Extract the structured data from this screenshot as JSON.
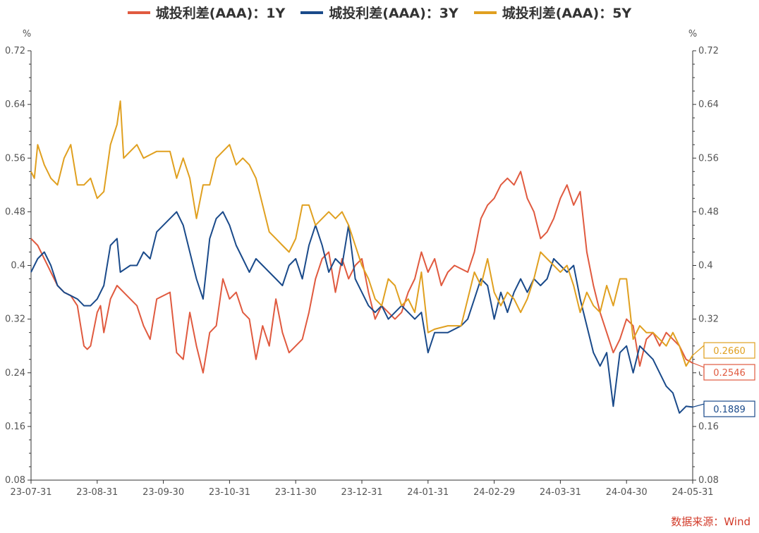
{
  "chart_data": {
    "type": "line",
    "title": "",
    "legend_placement": "top-center",
    "unit_left": "%",
    "unit_right": "%",
    "ylim": [
      0.08,
      0.72
    ],
    "y_ticks": [
      "0.08",
      "0.16",
      "0.24",
      "0.32",
      "0.4",
      "0.48",
      "0.56",
      "0.64",
      "0.72"
    ],
    "x_ticks": [
      "23-07-31",
      "23-08-31",
      "23-09-30",
      "23-10-31",
      "23-11-30",
      "23-12-31",
      "24-01-31",
      "24-02-29",
      "24-03-31",
      "24-04-30",
      "24-05-31"
    ],
    "x_tick_values": [
      0,
      1,
      2,
      3,
      4,
      5,
      6,
      7,
      8,
      9,
      10
    ],
    "grid": false,
    "source": "数据来源：Wind",
    "series": [
      {
        "name": "城投利差(AAA)：1Y",
        "color": "#e05a3f",
        "end_label": "0.2546",
        "points": [
          [
            0,
            0.44
          ],
          [
            0.1,
            0.43
          ],
          [
            0.2,
            0.41
          ],
          [
            0.3,
            0.39
          ],
          [
            0.4,
            0.37
          ],
          [
            0.5,
            0.36
          ],
          [
            0.6,
            0.355
          ],
          [
            0.7,
            0.34
          ],
          [
            0.75,
            0.31
          ],
          [
            0.8,
            0.28
          ],
          [
            0.85,
            0.275
          ],
          [
            0.9,
            0.28
          ],
          [
            1.0,
            0.33
          ],
          [
            1.05,
            0.34
          ],
          [
            1.1,
            0.3
          ],
          [
            1.2,
            0.35
          ],
          [
            1.3,
            0.37
          ],
          [
            1.4,
            0.36
          ],
          [
            1.5,
            0.35
          ],
          [
            1.6,
            0.34
          ],
          [
            1.7,
            0.31
          ],
          [
            1.8,
            0.29
          ],
          [
            1.9,
            0.35
          ],
          [
            2.1,
            0.36
          ],
          [
            2.2,
            0.27
          ],
          [
            2.3,
            0.26
          ],
          [
            2.4,
            0.33
          ],
          [
            2.5,
            0.28
          ],
          [
            2.6,
            0.24
          ],
          [
            2.7,
            0.3
          ],
          [
            2.8,
            0.31
          ],
          [
            2.9,
            0.38
          ],
          [
            3.0,
            0.35
          ],
          [
            3.1,
            0.36
          ],
          [
            3.2,
            0.33
          ],
          [
            3.3,
            0.32
          ],
          [
            3.4,
            0.26
          ],
          [
            3.5,
            0.31
          ],
          [
            3.6,
            0.28
          ],
          [
            3.7,
            0.35
          ],
          [
            3.8,
            0.3
          ],
          [
            3.9,
            0.27
          ],
          [
            4.0,
            0.28
          ],
          [
            4.1,
            0.29
          ],
          [
            4.2,
            0.33
          ],
          [
            4.3,
            0.38
          ],
          [
            4.4,
            0.41
          ],
          [
            4.5,
            0.42
          ],
          [
            4.6,
            0.36
          ],
          [
            4.7,
            0.41
          ],
          [
            4.8,
            0.38
          ],
          [
            4.9,
            0.4
          ],
          [
            5.0,
            0.41
          ],
          [
            5.1,
            0.36
          ],
          [
            5.2,
            0.32
          ],
          [
            5.3,
            0.34
          ],
          [
            5.4,
            0.33
          ],
          [
            5.5,
            0.32
          ],
          [
            5.6,
            0.33
          ],
          [
            5.7,
            0.36
          ],
          [
            5.8,
            0.38
          ],
          [
            5.9,
            0.42
          ],
          [
            6.0,
            0.39
          ],
          [
            6.1,
            0.41
          ],
          [
            6.2,
            0.37
          ],
          [
            6.3,
            0.39
          ],
          [
            6.4,
            0.4
          ],
          [
            6.6,
            0.39
          ],
          [
            6.7,
            0.42
          ],
          [
            6.8,
            0.47
          ],
          [
            6.9,
            0.49
          ],
          [
            7.0,
            0.5
          ],
          [
            7.1,
            0.52
          ],
          [
            7.2,
            0.53
          ],
          [
            7.3,
            0.52
          ],
          [
            7.4,
            0.54
          ],
          [
            7.5,
            0.5
          ],
          [
            7.6,
            0.48
          ],
          [
            7.7,
            0.44
          ],
          [
            7.8,
            0.45
          ],
          [
            7.9,
            0.47
          ],
          [
            8.0,
            0.5
          ],
          [
            8.1,
            0.52
          ],
          [
            8.2,
            0.49
          ],
          [
            8.3,
            0.51
          ],
          [
            8.4,
            0.42
          ],
          [
            8.5,
            0.37
          ],
          [
            8.6,
            0.33
          ],
          [
            8.7,
            0.3
          ],
          [
            8.8,
            0.27
          ],
          [
            8.9,
            0.29
          ],
          [
            9.0,
            0.32
          ],
          [
            9.1,
            0.31
          ],
          [
            9.2,
            0.25
          ],
          [
            9.3,
            0.29
          ],
          [
            9.4,
            0.3
          ],
          [
            9.5,
            0.28
          ],
          [
            9.6,
            0.3
          ],
          [
            9.7,
            0.29
          ],
          [
            9.8,
            0.28
          ],
          [
            9.9,
            0.26
          ],
          [
            10.0,
            0.2546
          ]
        ]
      },
      {
        "name": "城投利差(AAA)：3Y",
        "color": "#1a4a8a",
        "end_label": "0.1889",
        "points": [
          [
            0,
            0.39
          ],
          [
            0.1,
            0.41
          ],
          [
            0.2,
            0.42
          ],
          [
            0.3,
            0.4
          ],
          [
            0.4,
            0.37
          ],
          [
            0.5,
            0.36
          ],
          [
            0.6,
            0.355
          ],
          [
            0.7,
            0.35
          ],
          [
            0.8,
            0.34
          ],
          [
            0.9,
            0.34
          ],
          [
            1.0,
            0.35
          ],
          [
            1.1,
            0.37
          ],
          [
            1.2,
            0.43
          ],
          [
            1.3,
            0.44
          ],
          [
            1.35,
            0.39
          ],
          [
            1.5,
            0.4
          ],
          [
            1.6,
            0.4
          ],
          [
            1.7,
            0.42
          ],
          [
            1.8,
            0.41
          ],
          [
            1.9,
            0.45
          ],
          [
            2.0,
            0.46
          ],
          [
            2.1,
            0.47
          ],
          [
            2.2,
            0.48
          ],
          [
            2.3,
            0.46
          ],
          [
            2.4,
            0.42
          ],
          [
            2.5,
            0.38
          ],
          [
            2.6,
            0.35
          ],
          [
            2.7,
            0.44
          ],
          [
            2.8,
            0.47
          ],
          [
            2.9,
            0.48
          ],
          [
            3.0,
            0.46
          ],
          [
            3.1,
            0.43
          ],
          [
            3.2,
            0.41
          ],
          [
            3.3,
            0.39
          ],
          [
            3.4,
            0.41
          ],
          [
            3.5,
            0.4
          ],
          [
            3.6,
            0.39
          ],
          [
            3.7,
            0.38
          ],
          [
            3.8,
            0.37
          ],
          [
            3.9,
            0.4
          ],
          [
            4.0,
            0.41
          ],
          [
            4.1,
            0.38
          ],
          [
            4.2,
            0.43
          ],
          [
            4.3,
            0.46
          ],
          [
            4.4,
            0.43
          ],
          [
            4.5,
            0.39
          ],
          [
            4.6,
            0.41
          ],
          [
            4.7,
            0.4
          ],
          [
            4.8,
            0.46
          ],
          [
            4.9,
            0.38
          ],
          [
            5.0,
            0.36
          ],
          [
            5.1,
            0.34
          ],
          [
            5.2,
            0.33
          ],
          [
            5.3,
            0.34
          ],
          [
            5.4,
            0.32
          ],
          [
            5.5,
            0.33
          ],
          [
            5.6,
            0.34
          ],
          [
            5.7,
            0.33
          ],
          [
            5.8,
            0.32
          ],
          [
            5.9,
            0.33
          ],
          [
            6.0,
            0.27
          ],
          [
            6.1,
            0.3
          ],
          [
            6.3,
            0.3
          ],
          [
            6.5,
            0.31
          ],
          [
            6.6,
            0.32
          ],
          [
            6.7,
            0.35
          ],
          [
            6.8,
            0.38
          ],
          [
            6.9,
            0.37
          ],
          [
            7.0,
            0.32
          ],
          [
            7.1,
            0.36
          ],
          [
            7.2,
            0.33
          ],
          [
            7.3,
            0.36
          ],
          [
            7.4,
            0.38
          ],
          [
            7.5,
            0.36
          ],
          [
            7.6,
            0.38
          ],
          [
            7.7,
            0.37
          ],
          [
            7.8,
            0.38
          ],
          [
            7.9,
            0.41
          ],
          [
            8.0,
            0.4
          ],
          [
            8.1,
            0.39
          ],
          [
            8.2,
            0.4
          ],
          [
            8.3,
            0.35
          ],
          [
            8.4,
            0.31
          ],
          [
            8.5,
            0.27
          ],
          [
            8.6,
            0.25
          ],
          [
            8.7,
            0.27
          ],
          [
            8.8,
            0.19
          ],
          [
            8.9,
            0.27
          ],
          [
            9.0,
            0.28
          ],
          [
            9.1,
            0.24
          ],
          [
            9.2,
            0.28
          ],
          [
            9.3,
            0.27
          ],
          [
            9.4,
            0.26
          ],
          [
            9.5,
            0.24
          ],
          [
            9.6,
            0.22
          ],
          [
            9.7,
            0.21
          ],
          [
            9.8,
            0.18
          ],
          [
            9.9,
            0.19
          ],
          [
            10.0,
            0.1889
          ]
        ]
      },
      {
        "name": "城投利差(AAA)：5Y",
        "color": "#e0a020",
        "end_label": "0.2660",
        "points": [
          [
            0,
            0.54
          ],
          [
            0.05,
            0.53
          ],
          [
            0.1,
            0.58
          ],
          [
            0.2,
            0.55
          ],
          [
            0.3,
            0.53
          ],
          [
            0.4,
            0.52
          ],
          [
            0.5,
            0.56
          ],
          [
            0.6,
            0.58
          ],
          [
            0.65,
            0.55
          ],
          [
            0.7,
            0.52
          ],
          [
            0.8,
            0.52
          ],
          [
            0.9,
            0.53
          ],
          [
            1.0,
            0.5
          ],
          [
            1.1,
            0.51
          ],
          [
            1.2,
            0.58
          ],
          [
            1.3,
            0.61
          ],
          [
            1.35,
            0.645
          ],
          [
            1.4,
            0.56
          ],
          [
            1.5,
            0.57
          ],
          [
            1.6,
            0.58
          ],
          [
            1.7,
            0.56
          ],
          [
            1.8,
            0.565
          ],
          [
            1.9,
            0.57
          ],
          [
            2.0,
            0.57
          ],
          [
            2.1,
            0.57
          ],
          [
            2.2,
            0.53
          ],
          [
            2.3,
            0.56
          ],
          [
            2.4,
            0.53
          ],
          [
            2.5,
            0.47
          ],
          [
            2.6,
            0.52
          ],
          [
            2.7,
            0.52
          ],
          [
            2.8,
            0.56
          ],
          [
            2.9,
            0.57
          ],
          [
            3.0,
            0.58
          ],
          [
            3.1,
            0.55
          ],
          [
            3.2,
            0.56
          ],
          [
            3.3,
            0.55
          ],
          [
            3.4,
            0.53
          ],
          [
            3.5,
            0.49
          ],
          [
            3.6,
            0.45
          ],
          [
            3.7,
            0.44
          ],
          [
            3.8,
            0.43
          ],
          [
            3.9,
            0.42
          ],
          [
            4.0,
            0.44
          ],
          [
            4.1,
            0.49
          ],
          [
            4.2,
            0.49
          ],
          [
            4.3,
            0.46
          ],
          [
            4.4,
            0.47
          ],
          [
            4.5,
            0.48
          ],
          [
            4.6,
            0.47
          ],
          [
            4.7,
            0.48
          ],
          [
            4.8,
            0.46
          ],
          [
            4.9,
            0.43
          ],
          [
            5.0,
            0.4
          ],
          [
            5.1,
            0.38
          ],
          [
            5.2,
            0.35
          ],
          [
            5.3,
            0.34
          ],
          [
            5.4,
            0.38
          ],
          [
            5.5,
            0.37
          ],
          [
            5.6,
            0.34
          ],
          [
            5.7,
            0.35
          ],
          [
            5.8,
            0.33
          ],
          [
            5.9,
            0.39
          ],
          [
            6.0,
            0.3
          ],
          [
            6.1,
            0.305
          ],
          [
            6.3,
            0.31
          ],
          [
            6.5,
            0.31
          ],
          [
            6.6,
            0.35
          ],
          [
            6.7,
            0.39
          ],
          [
            6.8,
            0.37
          ],
          [
            6.9,
            0.41
          ],
          [
            7.0,
            0.36
          ],
          [
            7.1,
            0.34
          ],
          [
            7.2,
            0.36
          ],
          [
            7.3,
            0.35
          ],
          [
            7.4,
            0.33
          ],
          [
            7.5,
            0.35
          ],
          [
            7.6,
            0.38
          ],
          [
            7.7,
            0.42
          ],
          [
            7.8,
            0.41
          ],
          [
            7.9,
            0.4
          ],
          [
            8.0,
            0.39
          ],
          [
            8.1,
            0.4
          ],
          [
            8.2,
            0.37
          ],
          [
            8.3,
            0.33
          ],
          [
            8.4,
            0.36
          ],
          [
            8.5,
            0.34
          ],
          [
            8.6,
            0.33
          ],
          [
            8.7,
            0.37
          ],
          [
            8.8,
            0.34
          ],
          [
            8.9,
            0.38
          ],
          [
            9.0,
            0.38
          ],
          [
            9.1,
            0.29
          ],
          [
            9.2,
            0.31
          ],
          [
            9.3,
            0.3
          ],
          [
            9.4,
            0.3
          ],
          [
            9.5,
            0.29
          ],
          [
            9.6,
            0.28
          ],
          [
            9.7,
            0.3
          ],
          [
            9.8,
            0.28
          ],
          [
            9.9,
            0.25
          ],
          [
            10.0,
            0.266
          ]
        ]
      }
    ]
  }
}
